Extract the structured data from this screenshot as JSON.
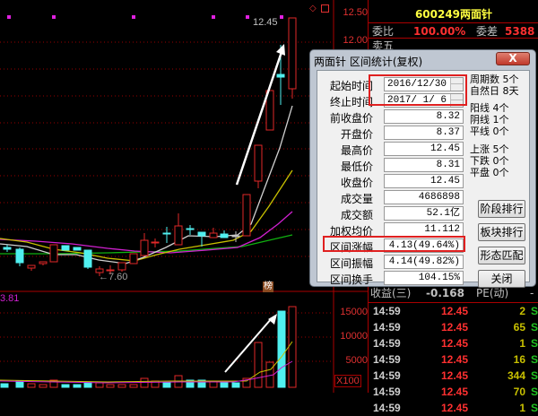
{
  "chart": {
    "price_axis": [
      "12.50",
      "12.00"
    ],
    "high_label": "12.45",
    "low_label": "←7.60",
    "volume_axis": [
      "15000",
      "10000",
      "5000"
    ],
    "volume_unit": "X100",
    "indicator_value": "3.81",
    "badge": "榜",
    "colors": {
      "up": "#e02828",
      "down": "#50f0f0",
      "ma5": "#d0d0d0",
      "ma10": "#c8c000",
      "ma20": "#d020d0",
      "ma60": "#10b010"
    }
  },
  "quote": {
    "code": "600249",
    "name": "两面针",
    "wb_label": "委比",
    "wb_value": "100.00%",
    "wc_label": "委差",
    "wc_value": "5388",
    "sell5_label": "卖五",
    "eps_label": "收益(三)",
    "eps_value": "-0.168",
    "pe_label": "PE(动)",
    "pe_value": "-"
  },
  "trades": [
    {
      "time": "14:59",
      "price": "12.45",
      "vol": "2",
      "side": "S"
    },
    {
      "time": "14:59",
      "price": "12.45",
      "vol": "65",
      "side": "S"
    },
    {
      "time": "14:59",
      "price": "12.45",
      "vol": "1",
      "side": "S"
    },
    {
      "time": "14:59",
      "price": "12.45",
      "vol": "16",
      "side": "S"
    },
    {
      "time": "14:59",
      "price": "12.45",
      "vol": "344",
      "side": "S"
    },
    {
      "time": "14:59",
      "price": "12.45",
      "vol": "70",
      "side": "S"
    },
    {
      "time": "14:59",
      "price": "12.45",
      "vol": "1",
      "side": "S"
    }
  ],
  "dialog": {
    "title": "两面针 区间统计(复权)",
    "close": "X",
    "fields": [
      {
        "label": "起始时间",
        "value": "2016/12/30"
      },
      {
        "label": "终止时间",
        "value": "2017/ 1/ 6"
      },
      {
        "label": "前收盘价",
        "value": "8.32"
      },
      {
        "label": "开盘价",
        "value": "8.37"
      },
      {
        "label": "最高价",
        "value": "12.45"
      },
      {
        "label": "最低价",
        "value": "8.31"
      },
      {
        "label": "收盘价",
        "value": "12.45"
      },
      {
        "label": "成交量",
        "value": "4686898"
      },
      {
        "label": "成交额",
        "value": "52.1亿"
      },
      {
        "label": "加权均价",
        "value": "11.112"
      },
      {
        "label": "区间涨幅",
        "value": "4.13(49.64%)"
      },
      {
        "label": "区间振幅",
        "value": "4.14(49.82%)"
      },
      {
        "label": "区间换手",
        "value": "104.15%"
      }
    ],
    "stats": [
      "周期数 5个",
      "自然日 8天",
      "阳线 4个",
      "阴线 1个",
      "平线 0个",
      "上涨 5个",
      "下跌 0个",
      "平盘 0个"
    ],
    "buttons": [
      "阶段排行",
      "板块排行",
      "形态匹配",
      "关闭"
    ]
  }
}
